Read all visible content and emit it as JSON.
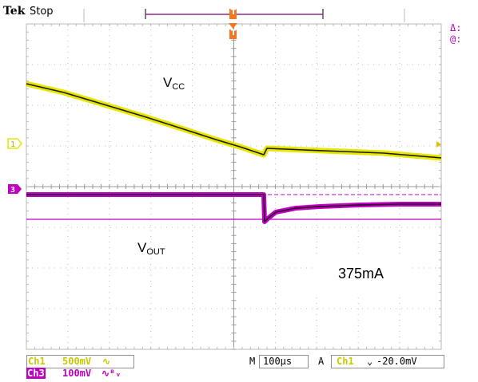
{
  "header": {
    "brand": "Tek",
    "run_state": "Stop",
    "trigger_marker": "T"
  },
  "cursor_readout": {
    "delta": "Δ:",
    "at": "@:"
  },
  "channels": {
    "ch1": {
      "marker": "1",
      "color": "#e6e600"
    },
    "ch3": {
      "marker": "3",
      "color": "#c000c0"
    }
  },
  "labels": {
    "vcc_main": "V",
    "vcc_sub": "CC",
    "vout_main": "V",
    "vout_sub": "OUT",
    "current": "375mA"
  },
  "bottom_bar": {
    "ch1_name": "Ch1",
    "ch1_scale": "500mV",
    "ch1_coupling": "∿",
    "ch3_name": "Ch3",
    "ch3_scale": "100mV",
    "ch3_coupling": "∿ᴮᵥ",
    "timebase_mode": "M",
    "timebase": "100µs",
    "trigger_mode": "A",
    "trigger_source": "Ch1",
    "trigger_slope": "⌄",
    "trigger_level": "-20.0mV"
  },
  "colors": {
    "ch1": "#e6e600",
    "ch3": "#c000c0",
    "trigger": "#f07820",
    "grid": "#b8b8b8",
    "bar_frame": "#909090"
  }
}
